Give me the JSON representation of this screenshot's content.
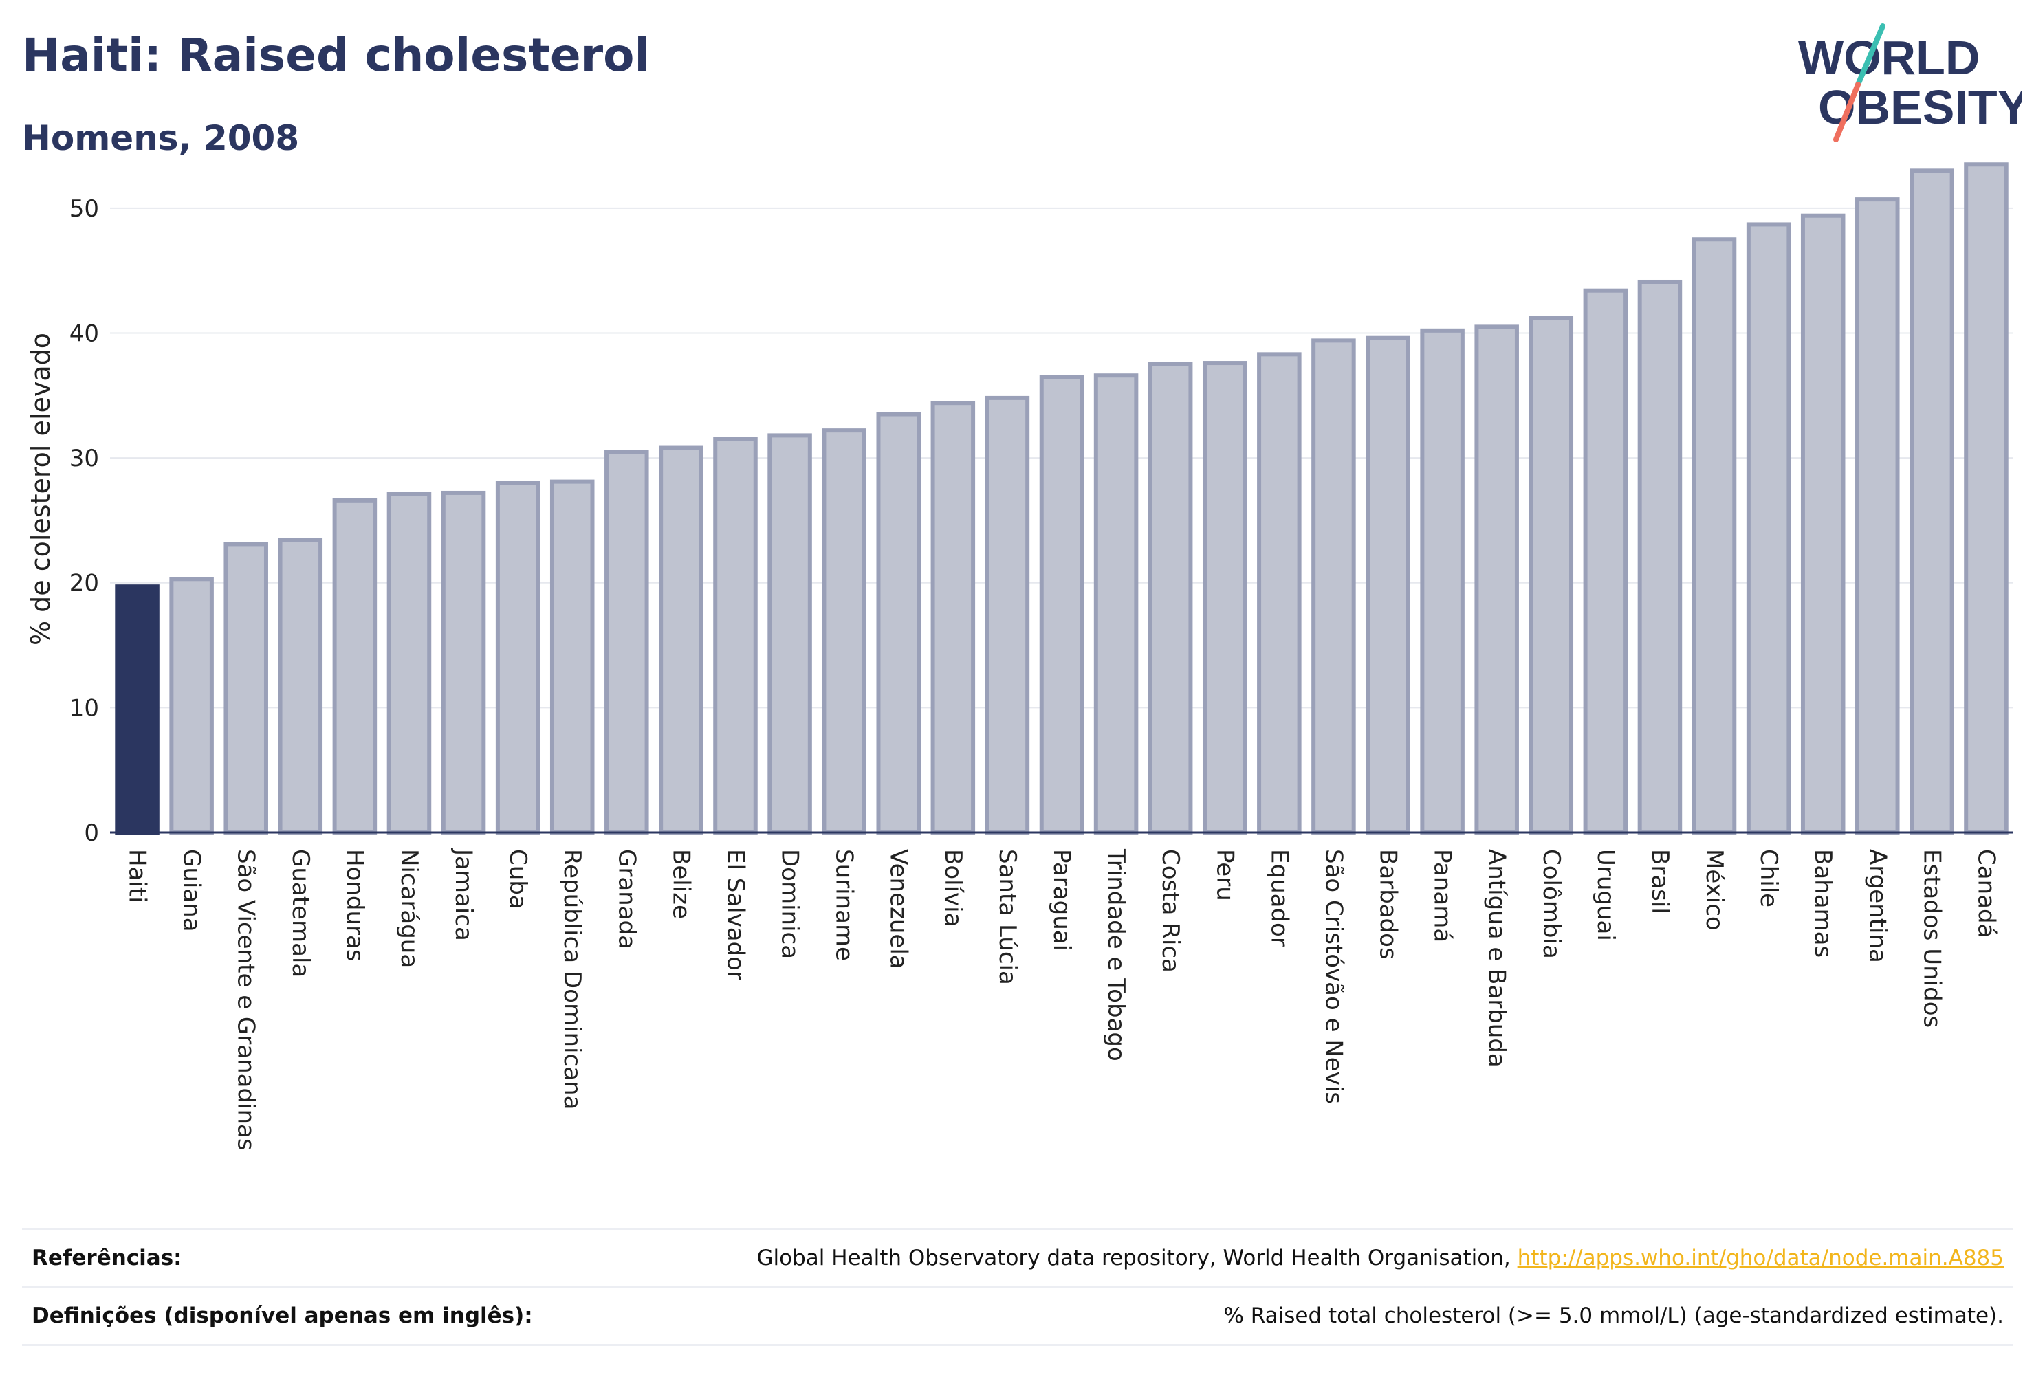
{
  "title": "Haiti: Raised cholesterol",
  "subtitle": "Homens, 2008",
  "logo": {
    "line1": "WORLD",
    "line2": "OBESITY"
  },
  "colors": {
    "highlight_bar": "#2b3660",
    "bar_fill": "#bfc3d0",
    "bar_stroke": "#9aa0b8",
    "logo_slash_top": "#3bbfb2",
    "logo_slash_bottom": "#ef6f5e",
    "link": "#f2b51c"
  },
  "footer": {
    "references_label": "Referências:",
    "references_text": "Global Health Observatory data repository, World Health Organisation, ",
    "references_link": "http://apps.who.int/gho/data/node.main.A885",
    "definitions_label": "Definições (disponível apenas em inglês):",
    "definitions_text": "% Raised total cholesterol (>= 5.0 mmol/L) (age-standardized estimate)."
  },
  "chart_data": {
    "type": "bar",
    "title": "Haiti: Raised cholesterol",
    "subtitle": "Homens, 2008",
    "xlabel": "",
    "ylabel": "% de colesterol elevado",
    "ylim": [
      0,
      55
    ],
    "yticks": [
      0,
      10,
      20,
      30,
      40,
      50
    ],
    "grid": true,
    "highlight": "Haiti",
    "categories": [
      "Haiti",
      "Guiana",
      "São Vicente e Granadinas",
      "Guatemala",
      "Honduras",
      "Nicarágua",
      "Jamaica",
      "Cuba",
      "República Dominicana",
      "Granada",
      "Belize",
      "El Salvador",
      "Dominica",
      "Suriname",
      "Venezuela",
      "Bolívia",
      "Santa Lúcia",
      "Paraguai",
      "Trindade e Tobago",
      "Costa Rica",
      "Peru",
      "Equador",
      "São Cristóvão e Nevis",
      "Barbados",
      "Panamá",
      "Antígua e Barbuda",
      "Colômbia",
      "Uruguai",
      "Brasil",
      "México",
      "Chile",
      "Bahamas",
      "Argentina",
      "Estados Unidos",
      "Canadá"
    ],
    "values": [
      19.7,
      20.3,
      23.1,
      23.4,
      26.6,
      27.1,
      27.2,
      28.0,
      28.1,
      30.5,
      30.8,
      31.5,
      31.8,
      32.2,
      33.5,
      34.4,
      34.8,
      36.5,
      36.6,
      37.5,
      37.6,
      38.3,
      39.4,
      39.6,
      40.2,
      40.5,
      41.2,
      43.4,
      44.1,
      47.5,
      48.7,
      49.4,
      50.7,
      53.0,
      53.5
    ]
  }
}
